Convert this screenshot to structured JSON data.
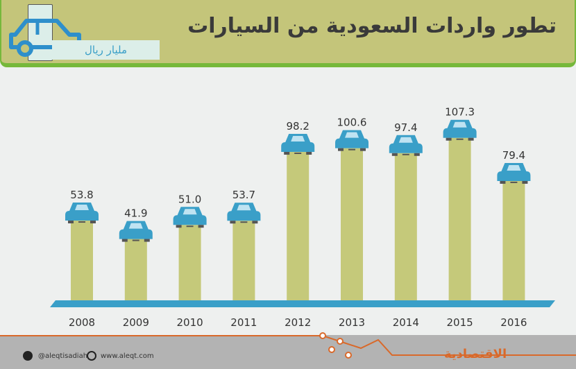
{
  "header": {
    "title": "تطور واردات السعودية من السيارات",
    "unit": "مليار ريال"
  },
  "footer": {
    "twitter": "@aleqtisadiah",
    "website": "www.aleqt.com",
    "logo": "الاقتصادية"
  },
  "colors": {
    "bar": "#c5c97a",
    "car": "#3a9fc8",
    "baseline": "#3a9fc8",
    "accent": "#d9692a"
  },
  "chart_data": {
    "type": "bar",
    "title": "تطور واردات السعودية من السيارات",
    "ylabel": "مليار ريال",
    "categories": [
      "2008",
      "2009",
      "2010",
      "2011",
      "2012",
      "2013",
      "2014",
      "2015",
      "2016"
    ],
    "values": [
      53.8,
      41.9,
      51.0,
      53.7,
      98.2,
      100.6,
      97.4,
      107.3,
      79.4
    ],
    "labels": [
      "53.8",
      "41.9",
      "51.0",
      "53.7",
      "98.2",
      "100.6",
      "97.4",
      "107.3",
      "79.4"
    ],
    "grid": false
  }
}
